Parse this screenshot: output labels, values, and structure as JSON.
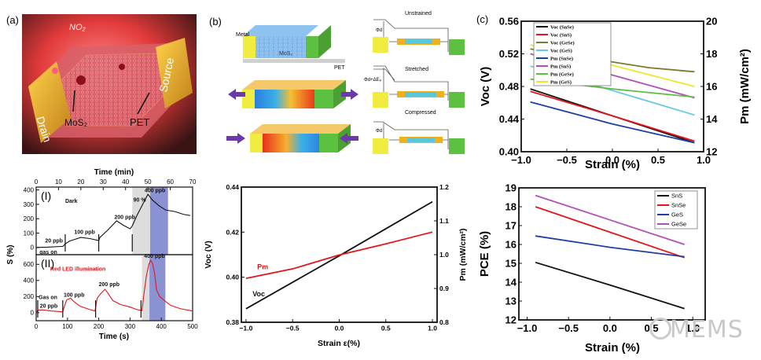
{
  "panel_labels": {
    "a": "(a)",
    "b": "(b)",
    "c": "(c)"
  },
  "panel_a": {
    "no2": "NO₂",
    "drain": "Drain",
    "source": "Source",
    "mos2": "MoS₂",
    "pet": "PET"
  },
  "panel_b": {
    "metal": "Metal",
    "mos2": "MoS₂",
    "pet": "PET",
    "unstrained": "Unstrained",
    "stretched": "Stretched",
    "compressed": "Compressed",
    "phi_unstrained": "Φd",
    "phi_stretched": "Φd+ΔEₚ",
    "phi_compressed": "Φd"
  },
  "watermark": "MEMS",
  "colors": {
    "black": "#111111",
    "red": "#e3161c",
    "olive": "#7d7a2c",
    "cyan": "#62c9de",
    "blue": "#1f3ea6",
    "purple": "#b24fb8",
    "green": "#5dbf3e",
    "yellow": "#efe62c",
    "gray": "#d9d9d9",
    "shade_blue": "#7d86cf"
  },
  "chart_data": [
    {
      "id": "c-top",
      "type": "line",
      "xlabel": "Strain (%)",
      "ylabel": "Voc (V)",
      "y2label": "Pm (mW/cm²)",
      "xlim": [
        -1.0,
        1.0
      ],
      "ylim": [
        0.4,
        0.56
      ],
      "y2lim": [
        12,
        20
      ],
      "xticks": [
        "−1.0",
        "−0.5",
        "0.0",
        "0.5",
        "1.0"
      ],
      "xtick_values": [
        -1,
        -0.5,
        0,
        0.5,
        1
      ],
      "yticks": [
        "0.40",
        "0.44",
        "0.48",
        "0.52",
        "0.56"
      ],
      "ytick_values": [
        0.4,
        0.44,
        0.48,
        0.52,
        0.56
      ],
      "y2ticks": [
        "12",
        "14",
        "16",
        "18",
        "20"
      ],
      "y2tick_values": [
        12,
        14,
        16,
        18,
        20
      ],
      "legend_position": "top-right",
      "series": [
        {
          "name": "Voc (SnSe)",
          "color": "black",
          "axis": "left",
          "points": [
            [
              -0.9,
              0.477
            ],
            [
              0,
              0.444
            ],
            [
              0.9,
              0.411
            ]
          ]
        },
        {
          "name": "Voc (SnS)",
          "color": "red",
          "axis": "left",
          "points": [
            [
              -0.9,
              0.474
            ],
            [
              0,
              0.444
            ],
            [
              0.9,
              0.413
            ]
          ]
        },
        {
          "name": "Voc (GeSe)",
          "color": "olive",
          "axis": "left",
          "points": [
            [
              -0.9,
              0.526
            ],
            [
              0.4,
              0.503
            ],
            [
              0.9,
              0.498
            ]
          ]
        },
        {
          "name": "Voc (GeS)",
          "color": "cyan",
          "axis": "left",
          "points": [
            [
              -0.9,
              0.505
            ],
            [
              0,
              0.475
            ],
            [
              0.9,
              0.445
            ]
          ]
        },
        {
          "name": "Pm (SnSe)",
          "color": "blue",
          "axis": "right",
          "points": [
            [
              -0.9,
              15.05
            ],
            [
              0,
              13.7
            ],
            [
              0.9,
              12.55
            ]
          ]
        },
        {
          "name": "Pm (SnS)",
          "color": "purple",
          "axis": "right",
          "points": [
            [
              -0.9,
              18.0
            ],
            [
              0,
              16.7
            ],
            [
              0.9,
              15.3
            ]
          ]
        },
        {
          "name": "Pm (GeSe)",
          "color": "green",
          "axis": "right",
          "points": [
            [
              -0.9,
              16.45
            ],
            [
              0,
              15.85
            ],
            [
              0.9,
              15.35
            ]
          ]
        },
        {
          "name": "Pm (GeS)",
          "color": "yellow",
          "axis": "right",
          "points": [
            [
              -0.9,
              18.55
            ],
            [
              0,
              17.3
            ],
            [
              0.9,
              16.0
            ]
          ]
        }
      ]
    },
    {
      "id": "c-bottom",
      "type": "line",
      "xlabel": "Strain (%)",
      "ylabel": "PCE (%)",
      "xlim": [
        -1.1,
        1.15
      ],
      "ylim": [
        12,
        19
      ],
      "xticks": [
        "−1.0",
        "−0.5",
        "0.0",
        "0.5",
        "1.0"
      ],
      "xtick_values": [
        -1,
        -0.5,
        0,
        0.5,
        1
      ],
      "yticks": [
        "12",
        "13",
        "14",
        "15",
        "16",
        "17",
        "18",
        "19"
      ],
      "ytick_values": [
        12,
        13,
        14,
        15,
        16,
        17,
        18,
        19
      ],
      "legend_position": "top-right",
      "series": [
        {
          "name": "SnS",
          "color": "black",
          "axis": "left",
          "points": [
            [
              -0.9,
              15.05
            ],
            [
              0,
              13.85
            ],
            [
              0.9,
              12.6
            ]
          ]
        },
        {
          "name": "SnSe",
          "color": "red",
          "axis": "left",
          "points": [
            [
              -0.9,
              18.0
            ],
            [
              0,
              16.65
            ],
            [
              0.9,
              15.3
            ]
          ]
        },
        {
          "name": "GeS",
          "color": "blue",
          "axis": "left",
          "points": [
            [
              -0.9,
              16.45
            ],
            [
              0,
              15.85
            ],
            [
              0.9,
              15.35
            ]
          ]
        },
        {
          "name": "GeSe",
          "color": "purple",
          "axis": "left",
          "points": [
            [
              -0.9,
              18.6
            ],
            [
              0,
              17.3
            ],
            [
              0.9,
              16.0
            ]
          ]
        }
      ]
    },
    {
      "id": "b-chart",
      "type": "line",
      "xlabel": "Strain ε(%)",
      "ylabel": "Voc (V)",
      "y2label": "Pm (mW/cm²)",
      "xlim": [
        -1.05,
        1.05
      ],
      "ylim": [
        0.38,
        0.44
      ],
      "y2lim": [
        0.8,
        1.2
      ],
      "xticks": [
        "−1.0",
        "−0.5",
        "0.0",
        "0.5",
        "1.0"
      ],
      "xtick_values": [
        -1,
        -0.5,
        0,
        0.5,
        1
      ],
      "yticks": [
        "0.38",
        "0.40",
        "0.42",
        "0.44"
      ],
      "ytick_values": [
        0.38,
        0.4,
        0.42,
        0.44
      ],
      "y2ticks": [
        "0.8",
        "0.9",
        "1.0",
        "1.1",
        "1.2"
      ],
      "y2tick_values": [
        0.8,
        0.9,
        1.0,
        1.1,
        1.2
      ],
      "annotations": [
        {
          "text": "Pm",
          "color": "red",
          "x": -0.88,
          "y": 0.4035
        },
        {
          "text": "Voc",
          "color": "black",
          "x": -0.93,
          "y": 0.3915
        }
      ],
      "series": [
        {
          "name": "Voc",
          "color": "black",
          "axis": "left",
          "points": [
            [
              -1,
              0.386
            ],
            [
              0,
              0.4095
            ],
            [
              1,
              0.4335
            ]
          ]
        },
        {
          "name": "Pm",
          "color": "red",
          "axis": "right",
          "points": [
            [
              -1,
              0.93
            ],
            [
              -0.5,
              0.958
            ],
            [
              0,
              0.999
            ],
            [
              0.5,
              1.032
            ],
            [
              1,
              1.067
            ]
          ]
        }
      ]
    },
    {
      "id": "d-top",
      "type": "line",
      "subpanel": "(I)",
      "xlabel": "Time (min)",
      "ylabel": "S (%)",
      "xlim": [
        0,
        70
      ],
      "ylim": [
        -50,
        420
      ],
      "xticks": [
        "0",
        "10",
        "20",
        "30",
        "40",
        "50",
        "60",
        "70"
      ],
      "xtick_values": [
        0,
        10,
        20,
        30,
        40,
        50,
        60,
        70
      ],
      "yticks": [
        "0",
        "100",
        "200",
        "300",
        "400"
      ],
      "ytick_values": [
        0,
        100,
        200,
        300,
        400
      ],
      "shaded": [
        {
          "from": 43,
          "to": 51,
          "color": "gray"
        },
        {
          "from": 51,
          "to": 59,
          "color": "shade_blue"
        }
      ],
      "annotations": [
        {
          "text": "Dark",
          "color": "black",
          "x": 13,
          "y": 310
        },
        {
          "text": "20 ppb",
          "color": "black",
          "x": 4,
          "y": 35
        },
        {
          "text": "gas on",
          "color": "black",
          "x": 1.5,
          "y": -45
        },
        {
          "text": "100 ppb",
          "color": "black",
          "x": 17,
          "y": 95
        },
        {
          "text": "200 ppb",
          "color": "black",
          "x": 35,
          "y": 200
        },
        {
          "text": "90 %",
          "color": "black",
          "x": 43.5,
          "y": 320
        },
        {
          "text": "400 ppb",
          "color": "black",
          "x": 48.5,
          "y": 385
        }
      ],
      "arrows_at": [
        13,
        28,
        43
      ],
      "series": [
        {
          "name": "Dark",
          "color": "black",
          "axis": "left",
          "points": [
            [
              0,
              0
            ],
            [
              5,
              2
            ],
            [
              12,
              8
            ],
            [
              13,
              25
            ],
            [
              15,
              45
            ],
            [
              18,
              60
            ],
            [
              20,
              70
            ],
            [
              24,
              62
            ],
            [
              28,
              48
            ],
            [
              28.5,
              70
            ],
            [
              32,
              120
            ],
            [
              36,
              185
            ],
            [
              39,
              155
            ],
            [
              42,
              130
            ],
            [
              43,
              150
            ],
            [
              45,
              220
            ],
            [
              47,
              280
            ],
            [
              50,
              370
            ],
            [
              52,
              330
            ],
            [
              55,
              290
            ],
            [
              58,
              260
            ],
            [
              62,
              250
            ],
            [
              66,
              230
            ],
            [
              69,
              222
            ]
          ]
        }
      ]
    },
    {
      "id": "d-bottom",
      "type": "line",
      "subpanel": "(II)",
      "xlabel": "Time (s)",
      "xlim": [
        0,
        500
      ],
      "ylim": [
        -100,
        720
      ],
      "xticks": [
        "0",
        "100",
        "200",
        "300",
        "400",
        "500"
      ],
      "xtick_values": [
        0,
        100,
        200,
        300,
        400,
        500
      ],
      "yticks": [
        "0",
        "200",
        "400",
        "600"
      ],
      "ytick_values": [
        0,
        200,
        400,
        600
      ],
      "shaded": [
        {
          "from": 338,
          "to": 362,
          "color": "gray"
        },
        {
          "from": 362,
          "to": 413,
          "color": "shade_blue"
        }
      ],
      "annotations": [
        {
          "text": "Red LED illumination",
          "color": "red",
          "x": 45,
          "y": 520
        },
        {
          "text": "Gas on",
          "color": "black",
          "x": 8,
          "y": 170
        },
        {
          "text": "20 ppb",
          "color": "black",
          "x": 12,
          "y": 60
        },
        {
          "text": "100 ppb",
          "color": "black",
          "x": 88,
          "y": 200
        },
        {
          "text": "200 ppb",
          "color": "black",
          "x": 200,
          "y": 330
        },
        {
          "text": "400 ppb",
          "color": "black",
          "x": 345,
          "y": 680
        }
      ],
      "arrows_at": [
        5,
        85,
        190,
        335
      ],
      "series": [
        {
          "name": "Red LED illumination",
          "color": "red",
          "axis": "left",
          "points": [
            [
              0,
              0
            ],
            [
              5,
              30
            ],
            [
              20,
              35
            ],
            [
              50,
              20
            ],
            [
              85,
              10
            ],
            [
              92,
              100
            ],
            [
              98,
              160
            ],
            [
              110,
              180
            ],
            [
              120,
              140
            ],
            [
              140,
              80
            ],
            [
              170,
              40
            ],
            [
              188,
              20
            ],
            [
              195,
              180
            ],
            [
              205,
              230
            ],
            [
              220,
              290
            ],
            [
              228,
              250
            ],
            [
              245,
              150
            ],
            [
              270,
              100
            ],
            [
              300,
              70
            ],
            [
              320,
              40
            ],
            [
              338,
              25
            ],
            [
              345,
              250
            ],
            [
              352,
              450
            ],
            [
              360,
              600
            ],
            [
              366,
              650
            ],
            [
              372,
              610
            ],
            [
              378,
              500
            ],
            [
              385,
              280
            ],
            [
              395,
              200
            ],
            [
              410,
              150
            ],
            [
              430,
              90
            ],
            [
              460,
              50
            ],
            [
              500,
              20
            ]
          ]
        }
      ]
    }
  ]
}
